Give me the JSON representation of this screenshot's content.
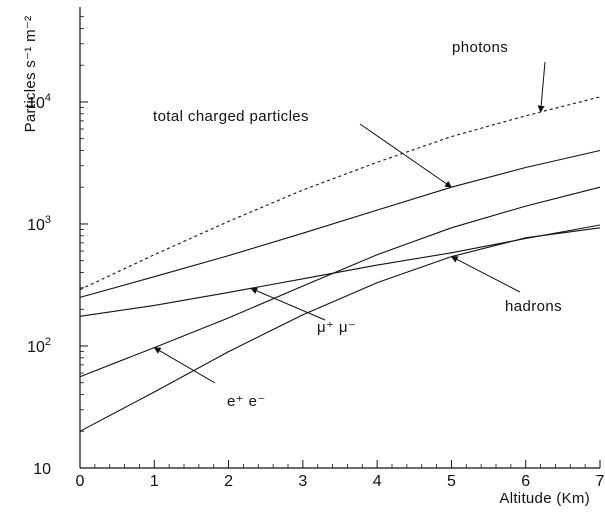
{
  "chart_data": {
    "type": "line",
    "title": "",
    "xlabel": "Altitude (Km)",
    "ylabel": "Particles s⁻¹ m⁻²",
    "xlim": [
      0,
      7
    ],
    "ylim": [
      10,
      60000
    ],
    "y_scale": "log",
    "grid": false,
    "x_ticks": [
      "0",
      "1",
      "2",
      "3",
      "4",
      "5",
      "6",
      "7"
    ],
    "y_tick_labels": [
      {
        "value": 10,
        "label": "10"
      },
      {
        "value": 100,
        "label": "10",
        "exp": "2"
      },
      {
        "value": 1000,
        "label": "10",
        "exp": "3"
      },
      {
        "value": 10000,
        "label": "10",
        "exp": "4"
      }
    ],
    "series": [
      {
        "name": "photons",
        "style": "dashed",
        "x": [
          0,
          1,
          2,
          3,
          4,
          5,
          6,
          7
        ],
        "y": [
          290,
          560,
          1050,
          1900,
          3200,
          5200,
          7700,
          11000
        ]
      },
      {
        "name": "total charged particles",
        "style": "solid",
        "x": [
          0,
          1,
          2,
          3,
          4,
          5,
          6,
          7
        ],
        "y": [
          250,
          370,
          550,
          840,
          1300,
          2000,
          2900,
          4000
        ]
      },
      {
        "name": "μ⁺ μ⁻",
        "style": "solid",
        "x": [
          0,
          1,
          2,
          3,
          4,
          5,
          6,
          7
        ],
        "y": [
          175,
          215,
          275,
          355,
          460,
          580,
          760,
          980
        ]
      },
      {
        "name": "hadrons",
        "style": "solid",
        "x": [
          0,
          1,
          2,
          3,
          4,
          5,
          6,
          7
        ],
        "y": [
          20,
          42,
          90,
          180,
          330,
          540,
          770,
          930
        ]
      },
      {
        "name": "e⁺ e⁻",
        "style": "solid",
        "x": [
          0,
          1,
          2,
          3,
          4,
          5,
          6,
          7
        ],
        "y": [
          56,
          97,
          170,
          310,
          560,
          930,
          1400,
          2000
        ]
      }
    ],
    "annotations": [
      {
        "text": "photons",
        "series": "photons",
        "points_to_x": 6.2
      },
      {
        "text": "total charged particles",
        "series": "total charged particles",
        "points_to_x": 5.0
      },
      {
        "text": "μ⁺ μ⁻",
        "series": "μ⁺ μ⁻",
        "points_to_x": 2.3
      },
      {
        "text": "hadrons",
        "series": "hadrons",
        "points_to_x": 5.0
      },
      {
        "text": "e⁺ e⁻",
        "series": "e⁺ e⁻",
        "points_to_x": 1.0
      }
    ],
    "colors": {
      "axis": "#111111",
      "line": "#111111",
      "background": "#ffffff"
    }
  }
}
